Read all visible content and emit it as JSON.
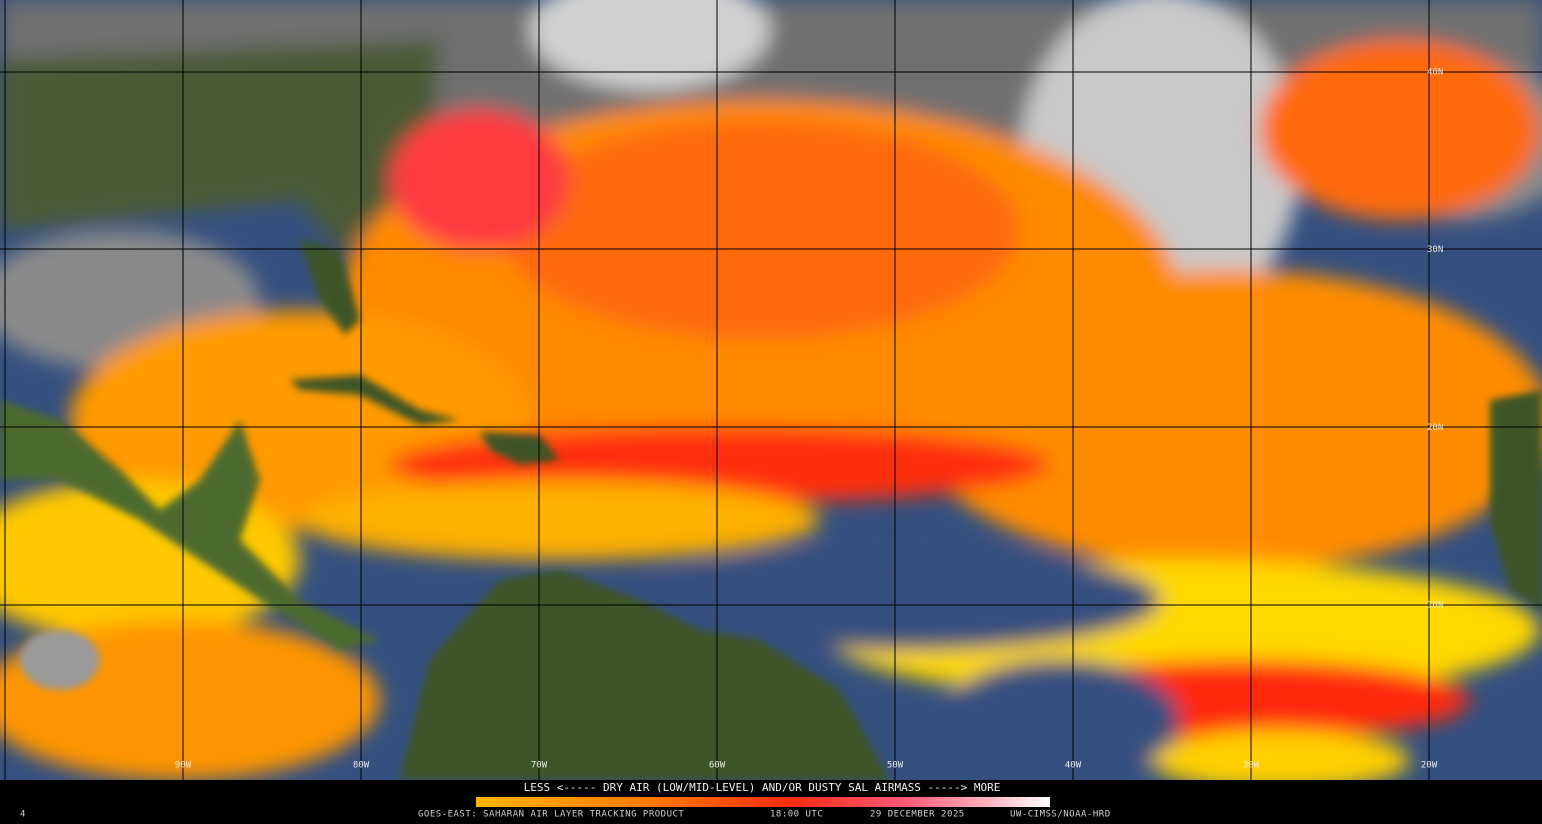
{
  "map": {
    "latitude_labels": [
      "40N",
      "30N",
      "20N",
      "10N"
    ],
    "longitude_labels": [
      "90W",
      "80W",
      "70W",
      "60W",
      "50W",
      "40W",
      "30W",
      "20W"
    ]
  },
  "legend": {
    "caption": "LESS <----- DRY AIR (LOW/MID-LEVEL) AND/OR DUSTY SAL AIRMASS -----> MORE"
  },
  "footer": {
    "frame": "4",
    "product": "GOES-EAST: SAHARAN AIR LAYER TRACKING PRODUCT",
    "time": "18:00 UTC",
    "date": "29 DECEMBER 2025",
    "credit": "UW-CIMSS/NOAA-HRD"
  }
}
